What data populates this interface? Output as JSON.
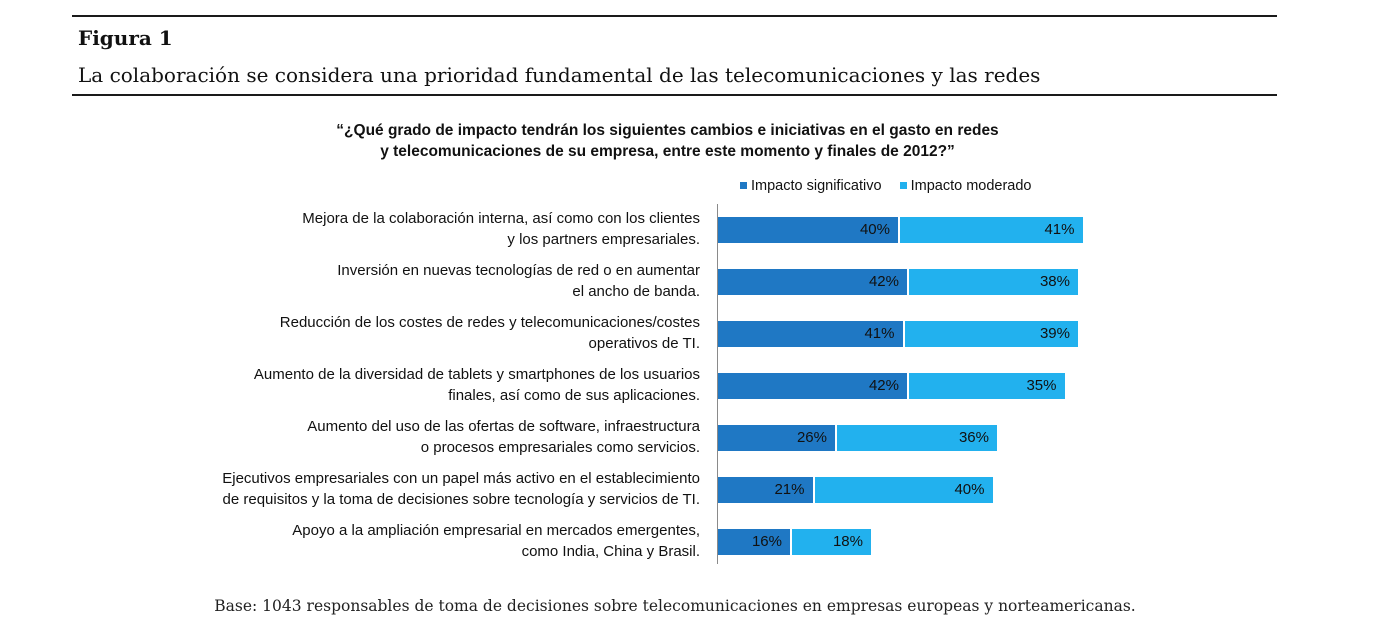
{
  "figure": {
    "label": "Figura 1",
    "title": "La colaboración se considera una prioridad fundamental de las telecomunicaciones y las redes",
    "footnote": "Base: 1043 responsables de toma de decisiones sobre telecomunicaciones en empresas europeas y norteamericanas."
  },
  "chart_data": {
    "type": "bar",
    "orientation": "horizontal",
    "stacked": true,
    "title": "“¿Qué grado de impacto tendrán los siguientes cambios e iniciativas en el gasto en redes y telecomunicaciones de su empresa, entre este momento y finales de 2012?”",
    "title_lines": [
      "“¿Qué grado de impacto tendrán los siguientes cambios e iniciativas en el gasto en redes",
      "y telecomunicaciones de su empresa, entre este momento y finales de 2012?”"
    ],
    "legend_position": "top-right",
    "grid": false,
    "xlim": [
      0,
      100
    ],
    "categories": [
      [
        "Mejora de la colaboración interna, así como con los clientes",
        "y los partners empresariales."
      ],
      [
        "Inversión en nuevas tecnologías de red o en aumentar",
        "el ancho de banda."
      ],
      [
        "Reducción de los costes de redes y telecomunicaciones/costes",
        "operativos de TI."
      ],
      [
        "Aumento de la diversidad de tablets y smartphones de los usuarios",
        "finales, así como de sus aplicaciones."
      ],
      [
        "Aumento del uso de las ofertas de software, infraestructura",
        "o procesos empresariales como servicios."
      ],
      [
        "Ejecutivos empresariales con un papel más activo en el establecimiento",
        "de requisitos y la toma de decisiones sobre tecnología y servicios de TI."
      ],
      [
        "Apoyo a la ampliación empresarial en mercados emergentes,",
        "como India, China y Brasil."
      ]
    ],
    "series": [
      {
        "name": "Impacto significativo",
        "color": "#1f78c4",
        "values": [
          40,
          42,
          41,
          42,
          26,
          21,
          16
        ],
        "labels": [
          "40%",
          "42%",
          "41%",
          "42%",
          "26%",
          "21%",
          "16%"
        ]
      },
      {
        "name": "Impacto moderado",
        "color": "#22b1ee",
        "values": [
          41,
          38,
          39,
          35,
          36,
          40,
          18
        ],
        "labels": [
          "41%",
          "38%",
          "39%",
          "35%",
          "36%",
          "40%",
          "18%"
        ]
      }
    ]
  }
}
